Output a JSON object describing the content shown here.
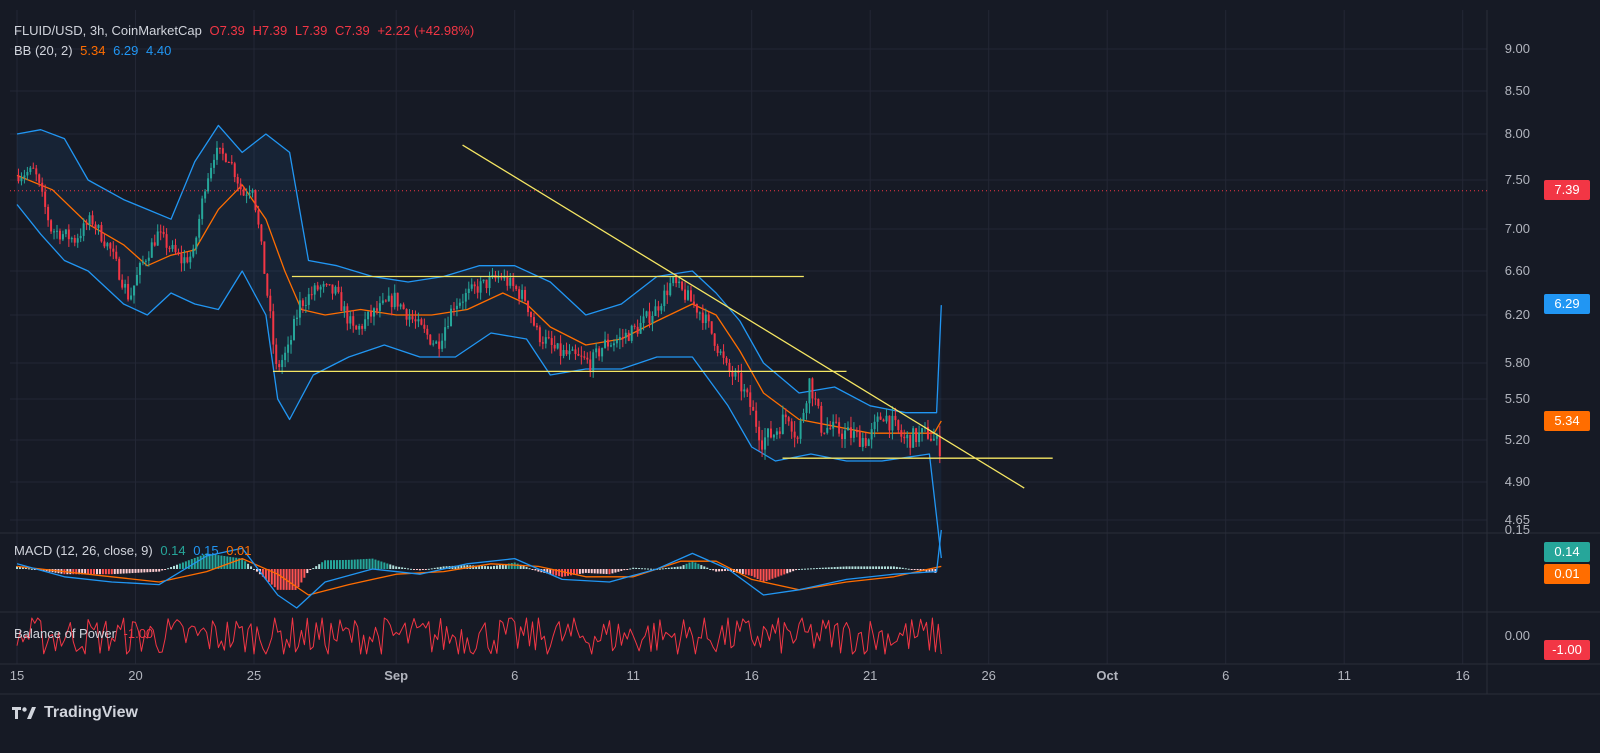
{
  "header": {
    "symbol": "FLUID/USD, 3h, CoinMarketCap",
    "open": "O7.39",
    "high": "H7.39",
    "low": "L7.39",
    "close": "C7.39",
    "change": "+2.22 (+42.98%)"
  },
  "bb_legend": {
    "label": "BB (20, 2)",
    "basis": "5.34",
    "upper": "6.29",
    "lower": "4.40"
  },
  "macd_legend": {
    "label": "MACD (12, 26, close, 9)",
    "hist": "0.14",
    "macd": "0.15",
    "signal": "0.01"
  },
  "bop_legend": {
    "label": "Balance of Power",
    "value": "-1.00"
  },
  "price_tags": {
    "last": "7.39",
    "bb_upper": "6.29",
    "bb_basis": "5.34",
    "macd_hist": "0.14",
    "macd_signal": "0.01",
    "bop": "-1.00"
  },
  "brand": "TradingView",
  "colors": {
    "up": "#26a69a",
    "down": "#f23645",
    "bb_band": "#2196f3",
    "bb_basis": "#ff6d00",
    "trendline": "#f5e663",
    "bop": "#f23645",
    "background": "#161a25"
  },
  "chart_data": {
    "type": "candlestick",
    "title": "FLUID/USD, 3h, CoinMarketCap",
    "price_axis_ticks": [
      9.0,
      8.5,
      8.0,
      7.5,
      7.0,
      6.6,
      6.2,
      5.8,
      5.5,
      5.2,
      4.9,
      4.65
    ],
    "price_axis_labels": [
      "9.00",
      "8.50",
      "8.00",
      "7.50",
      "7.00",
      "6.60",
      "6.20",
      "5.80",
      "5.50",
      "5.20",
      "4.90",
      "4.65"
    ],
    "macd_axis_labels": [
      "0.15"
    ],
    "bop_axis_labels": [
      "0.00"
    ],
    "x_tick_labels": [
      "15",
      "20",
      "25",
      "Sep",
      "6",
      "11",
      "16",
      "21",
      "26",
      "Oct",
      "6",
      "11",
      "16"
    ],
    "x_tick_days": [
      0,
      5,
      10,
      16,
      21,
      26,
      31,
      36,
      41,
      46,
      51,
      56,
      61
    ],
    "ylim": [
      4.6,
      9.2
    ],
    "key_levels": {
      "horizontal_resistance": 6.55,
      "horizontal_support": 5.73,
      "lower_support": 5.07,
      "last_price_line": 7.39
    },
    "descending_trendline": {
      "start": {
        "day": 18.8,
        "price": 7.88
      },
      "end": {
        "day": 42.5,
        "price": 4.86
      }
    },
    "price_path": [
      {
        "day": 0.0,
        "price": 7.55
      },
      {
        "day": 0.8,
        "price": 7.6
      },
      {
        "day": 1.5,
        "price": 7.0
      },
      {
        "day": 2.5,
        "price": 6.9
      },
      {
        "day": 3.2,
        "price": 7.1
      },
      {
        "day": 4.0,
        "price": 6.8
      },
      {
        "day": 4.8,
        "price": 6.35
      },
      {
        "day": 5.3,
        "price": 6.65
      },
      {
        "day": 6.0,
        "price": 6.95
      },
      {
        "day": 7.0,
        "price": 6.7
      },
      {
        "day": 7.5,
        "price": 6.75
      },
      {
        "day": 8.0,
        "price": 7.45
      },
      {
        "day": 8.4,
        "price": 7.8
      },
      {
        "day": 9.0,
        "price": 7.75
      },
      {
        "day": 9.6,
        "price": 7.35
      },
      {
        "day": 10.0,
        "price": 7.45
      },
      {
        "day": 10.5,
        "price": 6.6
      },
      {
        "day": 11.0,
        "price": 5.75
      },
      {
        "day": 11.5,
        "price": 5.9
      },
      {
        "day": 12.0,
        "price": 6.3
      },
      {
        "day": 12.8,
        "price": 6.45
      },
      {
        "day": 13.5,
        "price": 6.4
      },
      {
        "day": 14.3,
        "price": 6.05
      },
      {
        "day": 15.0,
        "price": 6.2
      },
      {
        "day": 16.0,
        "price": 6.35
      },
      {
        "day": 17.0,
        "price": 6.1
      },
      {
        "day": 17.8,
        "price": 5.95
      },
      {
        "day": 18.5,
        "price": 6.3
      },
      {
        "day": 19.5,
        "price": 6.45
      },
      {
        "day": 20.5,
        "price": 6.55
      },
      {
        "day": 21.5,
        "price": 6.35
      },
      {
        "day": 22.0,
        "price": 6.05
      },
      {
        "day": 22.8,
        "price": 5.9
      },
      {
        "day": 23.5,
        "price": 5.85
      },
      {
        "day": 24.3,
        "price": 5.8
      },
      {
        "day": 24.8,
        "price": 5.95
      },
      {
        "day": 25.5,
        "price": 6.0
      },
      {
        "day": 26.3,
        "price": 6.1
      },
      {
        "day": 27.0,
        "price": 6.25
      },
      {
        "day": 27.7,
        "price": 6.5
      },
      {
        "day": 28.4,
        "price": 6.35
      },
      {
        "day": 29.0,
        "price": 6.2
      },
      {
        "day": 29.5,
        "price": 6.0
      },
      {
        "day": 30.0,
        "price": 5.75
      },
      {
        "day": 30.5,
        "price": 5.65
      },
      {
        "day": 31.0,
        "price": 5.45
      },
      {
        "day": 31.5,
        "price": 5.2
      },
      {
        "day": 32.0,
        "price": 5.25
      },
      {
        "day": 32.6,
        "price": 5.4
      },
      {
        "day": 33.0,
        "price": 5.2
      },
      {
        "day": 33.5,
        "price": 5.65
      },
      {
        "day": 34.0,
        "price": 5.3
      },
      {
        "day": 35.0,
        "price": 5.25
      },
      {
        "day": 36.0,
        "price": 5.2
      },
      {
        "day": 36.6,
        "price": 5.4
      },
      {
        "day": 37.5,
        "price": 5.2
      },
      {
        "day": 38.5,
        "price": 5.25
      },
      {
        "day": 39.0,
        "price": 5.15
      }
    ],
    "bb_upper_path": [
      {
        "day": 0.0,
        "price": 8.0
      },
      {
        "day": 1.0,
        "price": 8.05
      },
      {
        "day": 2.0,
        "price": 7.95
      },
      {
        "day": 3.0,
        "price": 7.5
      },
      {
        "day": 4.5,
        "price": 7.3
      },
      {
        "day": 5.5,
        "price": 7.2
      },
      {
        "day": 6.5,
        "price": 7.1
      },
      {
        "day": 7.5,
        "price": 7.7
      },
      {
        "day": 8.5,
        "price": 8.1
      },
      {
        "day": 9.5,
        "price": 7.8
      },
      {
        "day": 10.5,
        "price": 8.0
      },
      {
        "day": 11.5,
        "price": 7.8
      },
      {
        "day": 12.3,
        "price": 6.7
      },
      {
        "day": 13.5,
        "price": 6.65
      },
      {
        "day": 15.0,
        "price": 6.55
      },
      {
        "day": 16.5,
        "price": 6.5
      },
      {
        "day": 18.0,
        "price": 6.55
      },
      {
        "day": 19.5,
        "price": 6.65
      },
      {
        "day": 21.0,
        "price": 6.65
      },
      {
        "day": 22.5,
        "price": 6.5
      },
      {
        "day": 24.0,
        "price": 6.2
      },
      {
        "day": 25.5,
        "price": 6.3
      },
      {
        "day": 27.0,
        "price": 6.55
      },
      {
        "day": 28.5,
        "price": 6.6
      },
      {
        "day": 29.5,
        "price": 6.4
      },
      {
        "day": 30.5,
        "price": 6.15
      },
      {
        "day": 31.5,
        "price": 5.8
      },
      {
        "day": 33.0,
        "price": 5.55
      },
      {
        "day": 34.5,
        "price": 5.6
      },
      {
        "day": 36.0,
        "price": 5.45
      },
      {
        "day": 37.5,
        "price": 5.4
      },
      {
        "day": 38.8,
        "price": 5.4
      },
      {
        "day": 39.0,
        "price": 6.29
      }
    ],
    "bb_lower_path": [
      {
        "day": 0.0,
        "price": 7.25
      },
      {
        "day": 1.0,
        "price": 6.95
      },
      {
        "day": 2.0,
        "price": 6.7
      },
      {
        "day": 3.0,
        "price": 6.6
      },
      {
        "day": 4.5,
        "price": 6.3
      },
      {
        "day": 5.5,
        "price": 6.2
      },
      {
        "day": 6.5,
        "price": 6.4
      },
      {
        "day": 7.5,
        "price": 6.3
      },
      {
        "day": 8.5,
        "price": 6.25
      },
      {
        "day": 9.5,
        "price": 6.6
      },
      {
        "day": 10.5,
        "price": 6.2
      },
      {
        "day": 11.0,
        "price": 5.5
      },
      {
        "day": 11.5,
        "price": 5.35
      },
      {
        "day": 12.5,
        "price": 5.7
      },
      {
        "day": 14.0,
        "price": 5.85
      },
      {
        "day": 15.5,
        "price": 5.95
      },
      {
        "day": 17.0,
        "price": 5.85
      },
      {
        "day": 18.5,
        "price": 5.85
      },
      {
        "day": 20.0,
        "price": 6.05
      },
      {
        "day": 21.5,
        "price": 6.0
      },
      {
        "day": 22.5,
        "price": 5.7
      },
      {
        "day": 24.0,
        "price": 5.75
      },
      {
        "day": 25.5,
        "price": 5.75
      },
      {
        "day": 27.0,
        "price": 5.85
      },
      {
        "day": 28.5,
        "price": 5.85
      },
      {
        "day": 30.0,
        "price": 5.45
      },
      {
        "day": 31.0,
        "price": 5.15
      },
      {
        "day": 32.0,
        "price": 5.05
      },
      {
        "day": 33.5,
        "price": 5.1
      },
      {
        "day": 35.0,
        "price": 5.05
      },
      {
        "day": 36.5,
        "price": 5.05
      },
      {
        "day": 38.5,
        "price": 5.1
      },
      {
        "day": 39.0,
        "price": 4.4
      }
    ],
    "bb_basis_path": [
      {
        "day": 0.0,
        "price": 7.55
      },
      {
        "day": 1.5,
        "price": 7.4
      },
      {
        "day": 3.0,
        "price": 7.05
      },
      {
        "day": 4.5,
        "price": 6.85
      },
      {
        "day": 5.5,
        "price": 6.65
      },
      {
        "day": 6.5,
        "price": 6.75
      },
      {
        "day": 7.5,
        "price": 6.8
      },
      {
        "day": 8.5,
        "price": 7.2
      },
      {
        "day": 9.5,
        "price": 7.45
      },
      {
        "day": 10.5,
        "price": 7.1
      },
      {
        "day": 11.3,
        "price": 6.6
      },
      {
        "day": 12.0,
        "price": 6.25
      },
      {
        "day": 13.0,
        "price": 6.2
      },
      {
        "day": 14.5,
        "price": 6.25
      },
      {
        "day": 16.0,
        "price": 6.2
      },
      {
        "day": 17.5,
        "price": 6.2
      },
      {
        "day": 19.0,
        "price": 6.25
      },
      {
        "day": 20.5,
        "price": 6.4
      },
      {
        "day": 21.5,
        "price": 6.3
      },
      {
        "day": 22.5,
        "price": 6.1
      },
      {
        "day": 24.0,
        "price": 5.95
      },
      {
        "day": 25.5,
        "price": 6.0
      },
      {
        "day": 27.0,
        "price": 6.15
      },
      {
        "day": 28.5,
        "price": 6.3
      },
      {
        "day": 29.5,
        "price": 6.2
      },
      {
        "day": 30.5,
        "price": 5.9
      },
      {
        "day": 31.5,
        "price": 5.55
      },
      {
        "day": 33.0,
        "price": 5.35
      },
      {
        "day": 34.5,
        "price": 5.3
      },
      {
        "day": 36.0,
        "price": 5.25
      },
      {
        "day": 37.5,
        "price": 5.25
      },
      {
        "day": 38.7,
        "price": 5.25
      },
      {
        "day": 39.0,
        "price": 5.34
      }
    ],
    "macd_line_path": [
      {
        "day": 0.0,
        "value": 0.02
      },
      {
        "day": 2.0,
        "value": -0.03
      },
      {
        "day": 4.0,
        "value": -0.05
      },
      {
        "day": 6.0,
        "value": -0.06
      },
      {
        "day": 8.0,
        "value": 0.05
      },
      {
        "day": 9.5,
        "value": 0.08
      },
      {
        "day": 11.0,
        "value": -0.1
      },
      {
        "day": 11.8,
        "value": -0.15
      },
      {
        "day": 13.0,
        "value": -0.05
      },
      {
        "day": 15.0,
        "value": 0.0
      },
      {
        "day": 17.0,
        "value": -0.02
      },
      {
        "day": 19.0,
        "value": 0.02
      },
      {
        "day": 21.0,
        "value": 0.04
      },
      {
        "day": 23.0,
        "value": -0.04
      },
      {
        "day": 25.0,
        "value": -0.05
      },
      {
        "day": 27.0,
        "value": 0.0
      },
      {
        "day": 28.5,
        "value": 0.06
      },
      {
        "day": 30.0,
        "value": 0.0
      },
      {
        "day": 31.5,
        "value": -0.1
      },
      {
        "day": 33.0,
        "value": -0.08
      },
      {
        "day": 35.0,
        "value": -0.04
      },
      {
        "day": 37.0,
        "value": -0.02
      },
      {
        "day": 38.8,
        "value": -0.01
      },
      {
        "day": 39.0,
        "value": 0.15
      }
    ],
    "macd_signal_path": [
      {
        "day": 0.0,
        "value": 0.01
      },
      {
        "day": 2.0,
        "value": -0.01
      },
      {
        "day": 4.0,
        "value": -0.03
      },
      {
        "day": 6.0,
        "value": -0.05
      },
      {
        "day": 8.0,
        "value": -0.01
      },
      {
        "day": 9.5,
        "value": 0.04
      },
      {
        "day": 11.0,
        "value": -0.02
      },
      {
        "day": 12.3,
        "value": -0.1
      },
      {
        "day": 14.0,
        "value": -0.06
      },
      {
        "day": 16.0,
        "value": -0.02
      },
      {
        "day": 18.0,
        "value": -0.01
      },
      {
        "day": 20.0,
        "value": 0.02
      },
      {
        "day": 22.0,
        "value": 0.01
      },
      {
        "day": 24.0,
        "value": -0.03
      },
      {
        "day": 26.0,
        "value": -0.03
      },
      {
        "day": 28.0,
        "value": 0.03
      },
      {
        "day": 29.5,
        "value": 0.03
      },
      {
        "day": 31.0,
        "value": -0.04
      },
      {
        "day": 33.0,
        "value": -0.08
      },
      {
        "day": 35.0,
        "value": -0.05
      },
      {
        "day": 37.0,
        "value": -0.03
      },
      {
        "day": 39.0,
        "value": 0.01
      }
    ],
    "bop_range": [
      -1.0,
      1.0
    ],
    "bop_last": -1.0
  }
}
